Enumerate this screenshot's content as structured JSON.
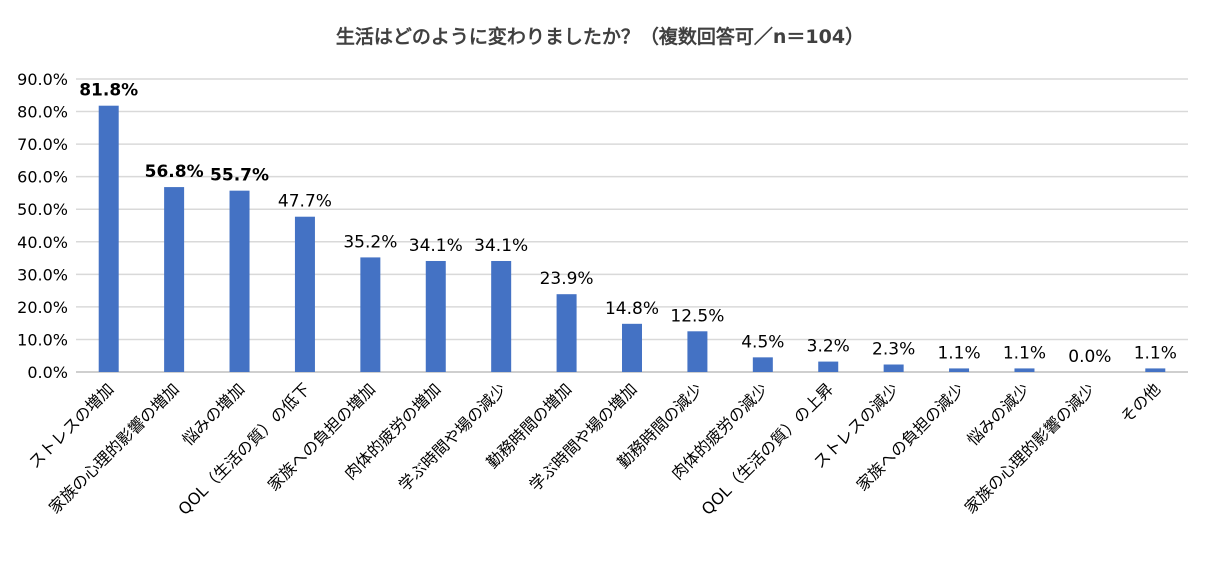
{
  "chart_data": {
    "type": "bar",
    "title": "生活はどのように変わりましたか？（複数回答可／n＝104）",
    "xlabel": "",
    "ylabel": "",
    "categories": [
      "ストレスの増加",
      "家族の心理的影響の増加",
      "悩みの増加",
      "QOL（生活の質）の低下",
      "家族への負担の増加",
      "肉体的疲労の増加",
      "学ぶ時間や場の減少",
      "勤務時間の増加",
      "学ぶ時間や場の増加",
      "勤務時間の減少",
      "肉体的疲労の減少",
      "QOL（生活の質）の上昇",
      "ストレスの減少",
      "家族への負担の減少",
      "悩みの減少",
      "家族の心理的影響の減少",
      "その他"
    ],
    "values": [
      81.8,
      56.8,
      55.7,
      47.7,
      35.2,
      34.1,
      34.1,
      23.9,
      14.8,
      12.5,
      4.5,
      3.2,
      2.3,
      1.1,
      1.1,
      0.0,
      1.1
    ],
    "data_labels": [
      "81.8%",
      "56.8%",
      "55.7%",
      "47.7%",
      "35.2%",
      "34.1%",
      "34.1%",
      "23.9%",
      "14.8%",
      "12.5%",
      "4.5%",
      "3.2%",
      "2.3%",
      "1.1%",
      "1.1%",
      "0.0%",
      "1.1%"
    ],
    "bold_labels": [
      true,
      true,
      true,
      false,
      false,
      false,
      false,
      false,
      false,
      false,
      false,
      false,
      false,
      false,
      false,
      false,
      false
    ],
    "ylim": [
      0,
      90
    ],
    "yticks": [
      0,
      10,
      20,
      30,
      40,
      50,
      60,
      70,
      80,
      90
    ],
    "ytick_labels": [
      "0.0%",
      "10.0%",
      "20.0%",
      "30.0%",
      "40.0%",
      "50.0%",
      "60.0%",
      "70.0%",
      "80.0%",
      "90.0%"
    ],
    "grid": true,
    "legend": "none",
    "bar_color": "#4472C4",
    "grid_color": "#D9D9D9",
    "axis_color": "#BFBFBF"
  }
}
